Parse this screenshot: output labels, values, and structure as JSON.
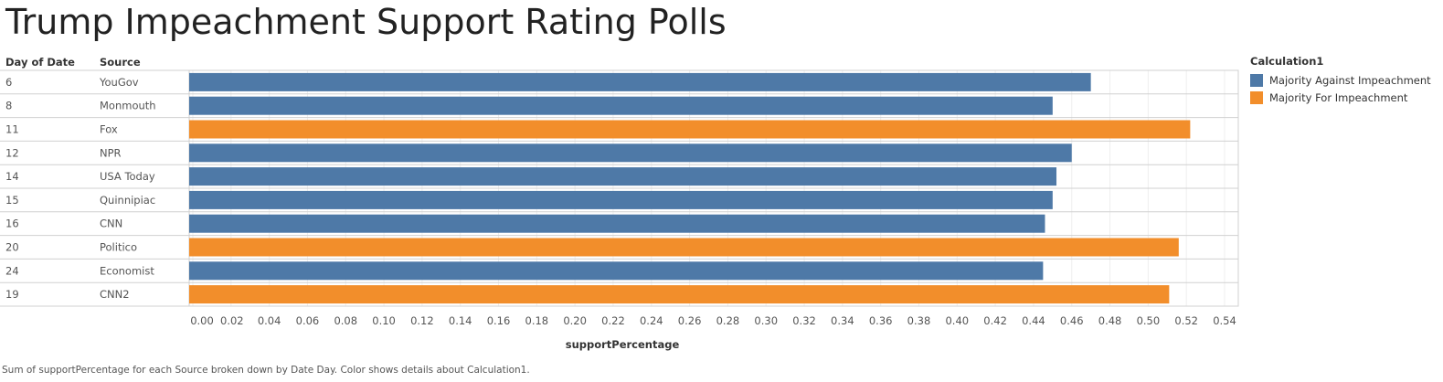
{
  "title": "Trump Impeachment Support Rating Polls",
  "headers": {
    "day": "Day of Date",
    "source": "Source"
  },
  "legend": {
    "title": "Calculation1",
    "items": [
      {
        "label": "Majority Against Impeachment",
        "color": "#4e79a7"
      },
      {
        "label": "Majority For Impeachment",
        "color": "#f28e2b"
      }
    ]
  },
  "caption": "Sum of supportPercentage for each Source broken down by Date Day.  Color shows details about Calculation1.",
  "chart_data": {
    "type": "bar",
    "orientation": "horizontal",
    "xlabel": "supportPercentage",
    "xlim": [
      0,
      0.54
    ],
    "xticks": [
      "0.00",
      "0.02",
      "0.04",
      "0.06",
      "0.08",
      "0.10",
      "0.12",
      "0.14",
      "0.16",
      "0.18",
      "0.20",
      "0.22",
      "0.24",
      "0.26",
      "0.28",
      "0.30",
      "0.32",
      "0.34",
      "0.36",
      "0.38",
      "0.40",
      "0.42",
      "0.44",
      "0.46",
      "0.48",
      "0.50",
      "0.52",
      "0.54"
    ],
    "rows": [
      {
        "day": "6",
        "source": "YouGov",
        "value": 0.47,
        "category": "Majority Against Impeachment"
      },
      {
        "day": "8",
        "source": "Monmouth",
        "value": 0.45,
        "category": "Majority Against Impeachment"
      },
      {
        "day": "11",
        "source": "Fox",
        "value": 0.522,
        "category": "Majority For Impeachment"
      },
      {
        "day": "12",
        "source": "NPR",
        "value": 0.46,
        "category": "Majority Against Impeachment"
      },
      {
        "day": "14",
        "source": "USA Today",
        "value": 0.452,
        "category": "Majority Against Impeachment"
      },
      {
        "day": "15",
        "source": "Quinnipiac",
        "value": 0.45,
        "category": "Majority Against Impeachment"
      },
      {
        "day": "16",
        "source": "CNN",
        "value": 0.446,
        "category": "Majority Against Impeachment"
      },
      {
        "day": "20",
        "source": "Politico",
        "value": 0.516,
        "category": "Majority For Impeachment"
      },
      {
        "day": "24",
        "source": "Economist",
        "value": 0.445,
        "category": "Majority Against Impeachment"
      },
      {
        "day": "19",
        "source": "CNN2",
        "value": 0.511,
        "category": "Majority For Impeachment"
      }
    ]
  }
}
